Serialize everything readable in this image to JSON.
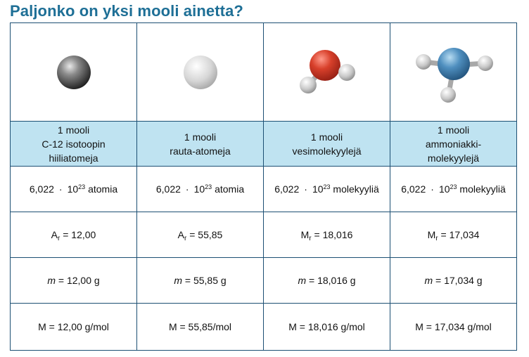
{
  "title": "Paljonko on yksi mooli ainetta?",
  "columns": [
    {
      "icon": "carbon-atom-sphere",
      "name_lines": [
        "1 mooli",
        "C-12 isotoopin",
        "hiiliatomeja"
      ],
      "count": {
        "value": "6,022",
        "dot": "·",
        "base": "10",
        "exp": "23",
        "unit": "atomia"
      },
      "mass_symbol": {
        "main": "A",
        "sub": "r",
        "rest": " = 12,00"
      },
      "m_value": {
        "symbol": "m",
        "rest": " = 12,00 g"
      },
      "molar": "M = 12,00 g/mol"
    },
    {
      "icon": "iron-atom-sphere",
      "name_lines": [
        "1 mooli",
        "rauta-atomeja"
      ],
      "count": {
        "value": "6,022",
        "dot": "·",
        "base": "10",
        "exp": "23",
        "unit": "atomia"
      },
      "mass_symbol": {
        "main": "A",
        "sub": "r",
        "rest": " = 55,85"
      },
      "m_value": {
        "symbol": "m",
        "rest": " = 55,85 g"
      },
      "molar": "M = 55,85/mol"
    },
    {
      "icon": "water-molecule",
      "name_lines": [
        "1 mooli",
        "vesimolekyylejä"
      ],
      "count": {
        "value": "6,022",
        "dot": "·",
        "base": "10",
        "exp": "23",
        "unit": "molekyyliä"
      },
      "mass_symbol": {
        "main": "M",
        "sub": "r",
        "rest": " = 18,016"
      },
      "m_value": {
        "symbol": "m",
        "rest": " = 18,016 g"
      },
      "molar": "M = 18,016 g/mol"
    },
    {
      "icon": "ammonia-molecule",
      "name_lines": [
        "1 mooli",
        "ammoniakki-",
        "molekyylejä"
      ],
      "count": {
        "value": "6,022",
        "dot": "·",
        "base": "10",
        "exp": "23",
        "unit": "molekyyliä"
      },
      "mass_symbol": {
        "main": "M",
        "sub": "r",
        "rest": " = 17,034"
      },
      "m_value": {
        "symbol": "m",
        "rest": " = 17,034 g"
      },
      "molar": "M = 17,034 g/mol"
    }
  ]
}
